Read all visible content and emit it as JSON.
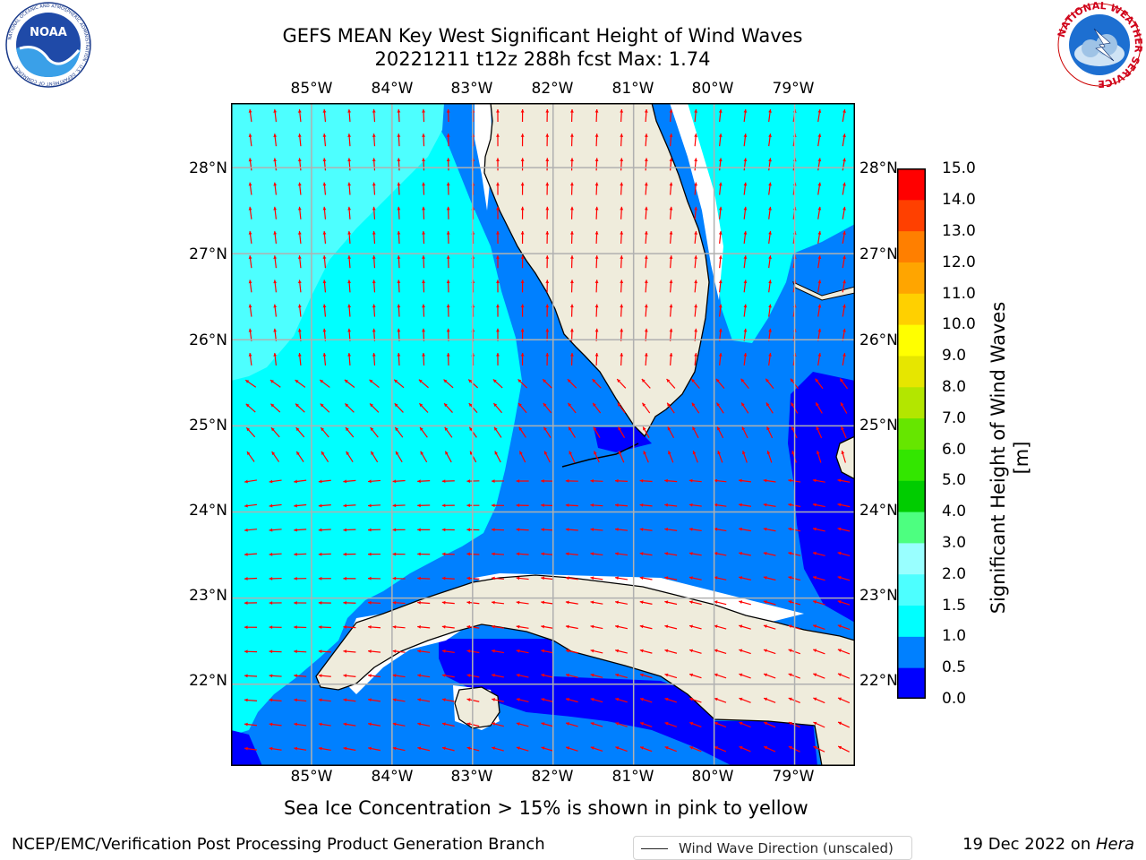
{
  "title_line1": "GEFS MEAN Key West Significant Height of Wind Waves",
  "title_line2": "20221211 t12z 288h fcst   Max: 1.74",
  "logos": {
    "noaa_text": "NOAA",
    "noaa_ring": "NATIONAL OCEANIC AND ATMOSPHERIC ADMINISTRATION · U.S. DEPARTMENT OF COMMERCE",
    "nws_ring": "NATIONAL WEATHER SERVICE"
  },
  "map": {
    "lon_labels": [
      "85°W",
      "84°W",
      "83°W",
      "82°W",
      "81°W",
      "80°W",
      "79°W"
    ],
    "lat_labels": [
      "28°N",
      "27°N",
      "26°N",
      "25°N",
      "24°N",
      "23°N",
      "22°N"
    ],
    "lon_range": [
      -86.0,
      -78.25
    ],
    "lat_range": [
      21.05,
      28.75
    ],
    "grid": true,
    "land_color": "#efecdc",
    "arrow_color": "#ff0000",
    "legend_label": "Wind Wave Direction (unscaled)"
  },
  "colorbar": {
    "ticks": [
      "0.0",
      "0.5",
      "1.0",
      "1.5",
      "2.0",
      "3.0",
      "4.0",
      "5.0",
      "6.0",
      "7.0",
      "8.0",
      "9.0",
      "10.0",
      "11.0",
      "12.0",
      "13.0",
      "14.0",
      "15.0"
    ],
    "colors": [
      "#0000ff",
      "#0080ff",
      "#00ffff",
      "#4dffff",
      "#99ffff",
      "#4dff80",
      "#00cc00",
      "#33e600",
      "#66e600",
      "#b3e600",
      "#e6e600",
      "#ffff00",
      "#ffd000",
      "#ffa500",
      "#ff7f00",
      "#ff4000",
      "#ff0000"
    ],
    "label": "Significant Height of Wind Waves [m]"
  },
  "note": "Sea Ice Concentration > 15% is shown in pink to yellow",
  "footer_left": "NCEP/EMC/Verification Post Processing Product Generation Branch",
  "footer_date": "19 Dec 2022 on ",
  "footer_host": "Hera"
}
